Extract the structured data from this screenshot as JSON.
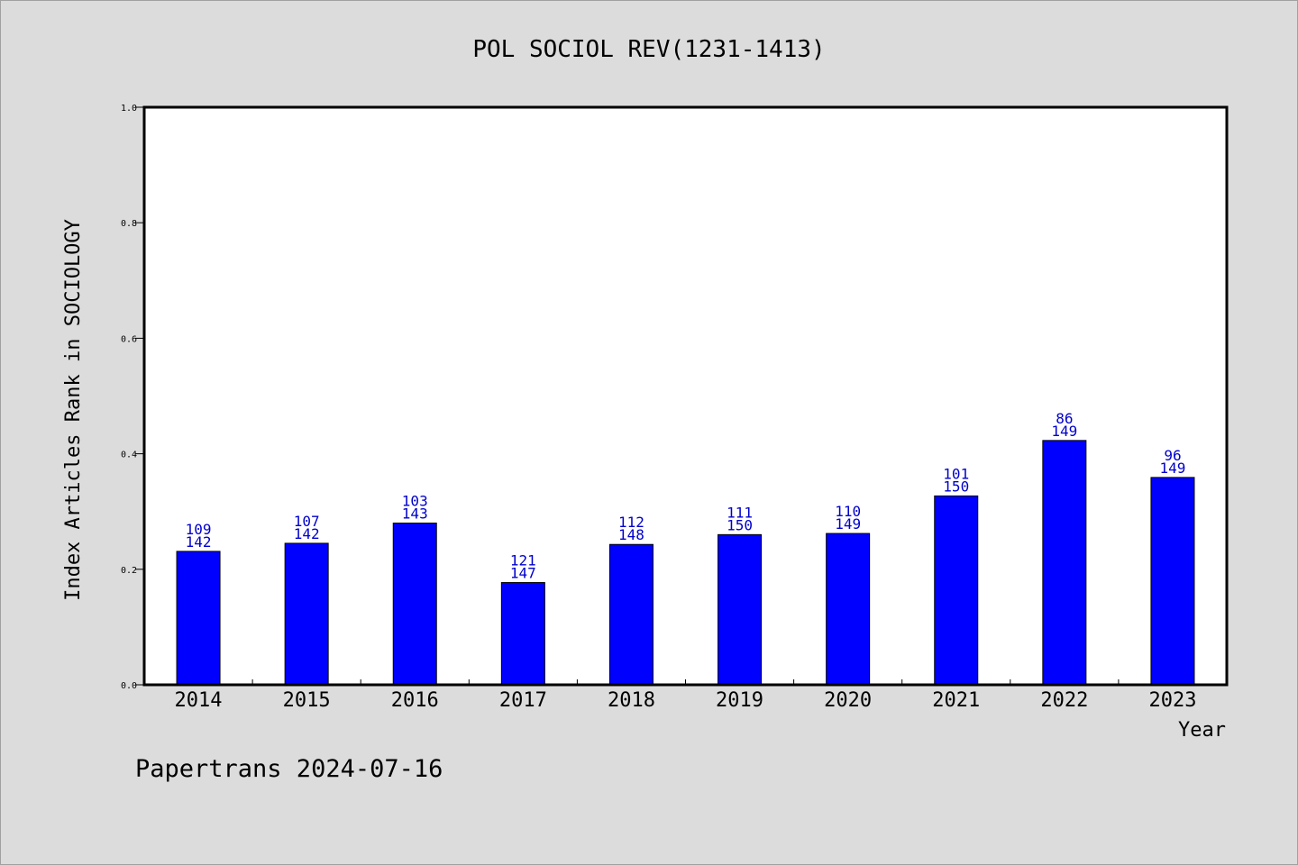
{
  "chart_data": {
    "type": "bar",
    "title": "POL SOCIOL REV(1231-1413)",
    "xlabel": "Year",
    "ylabel": "Index Articles Rank in SOCIOLOGY",
    "ylim": [
      0,
      1.0
    ],
    "yticks": [
      "0.0",
      "0.2",
      "0.4",
      "0.6",
      "0.8",
      "1.0"
    ],
    "grid": false,
    "categories": [
      "2014",
      "2015",
      "2016",
      "2017",
      "2018",
      "2019",
      "2020",
      "2021",
      "2022",
      "2023"
    ],
    "values": [
      0.231,
      0.245,
      0.28,
      0.177,
      0.243,
      0.26,
      0.262,
      0.327,
      0.423,
      0.359
    ],
    "bar_labels_top": [
      "109",
      "107",
      "103",
      "121",
      "112",
      "111",
      "110",
      "101",
      "86",
      "96"
    ],
    "bar_labels_bottom": [
      "142",
      "142",
      "143",
      "147",
      "148",
      "150",
      "149",
      "150",
      "149",
      "149"
    ],
    "bar_color": "#0000ff",
    "label_color": "#0000cc"
  },
  "footer": "Papertrans 2024-07-16",
  "colors": {
    "background": "#dcdcdc",
    "plot_background": "#ffffff",
    "axis": "#000000"
  }
}
